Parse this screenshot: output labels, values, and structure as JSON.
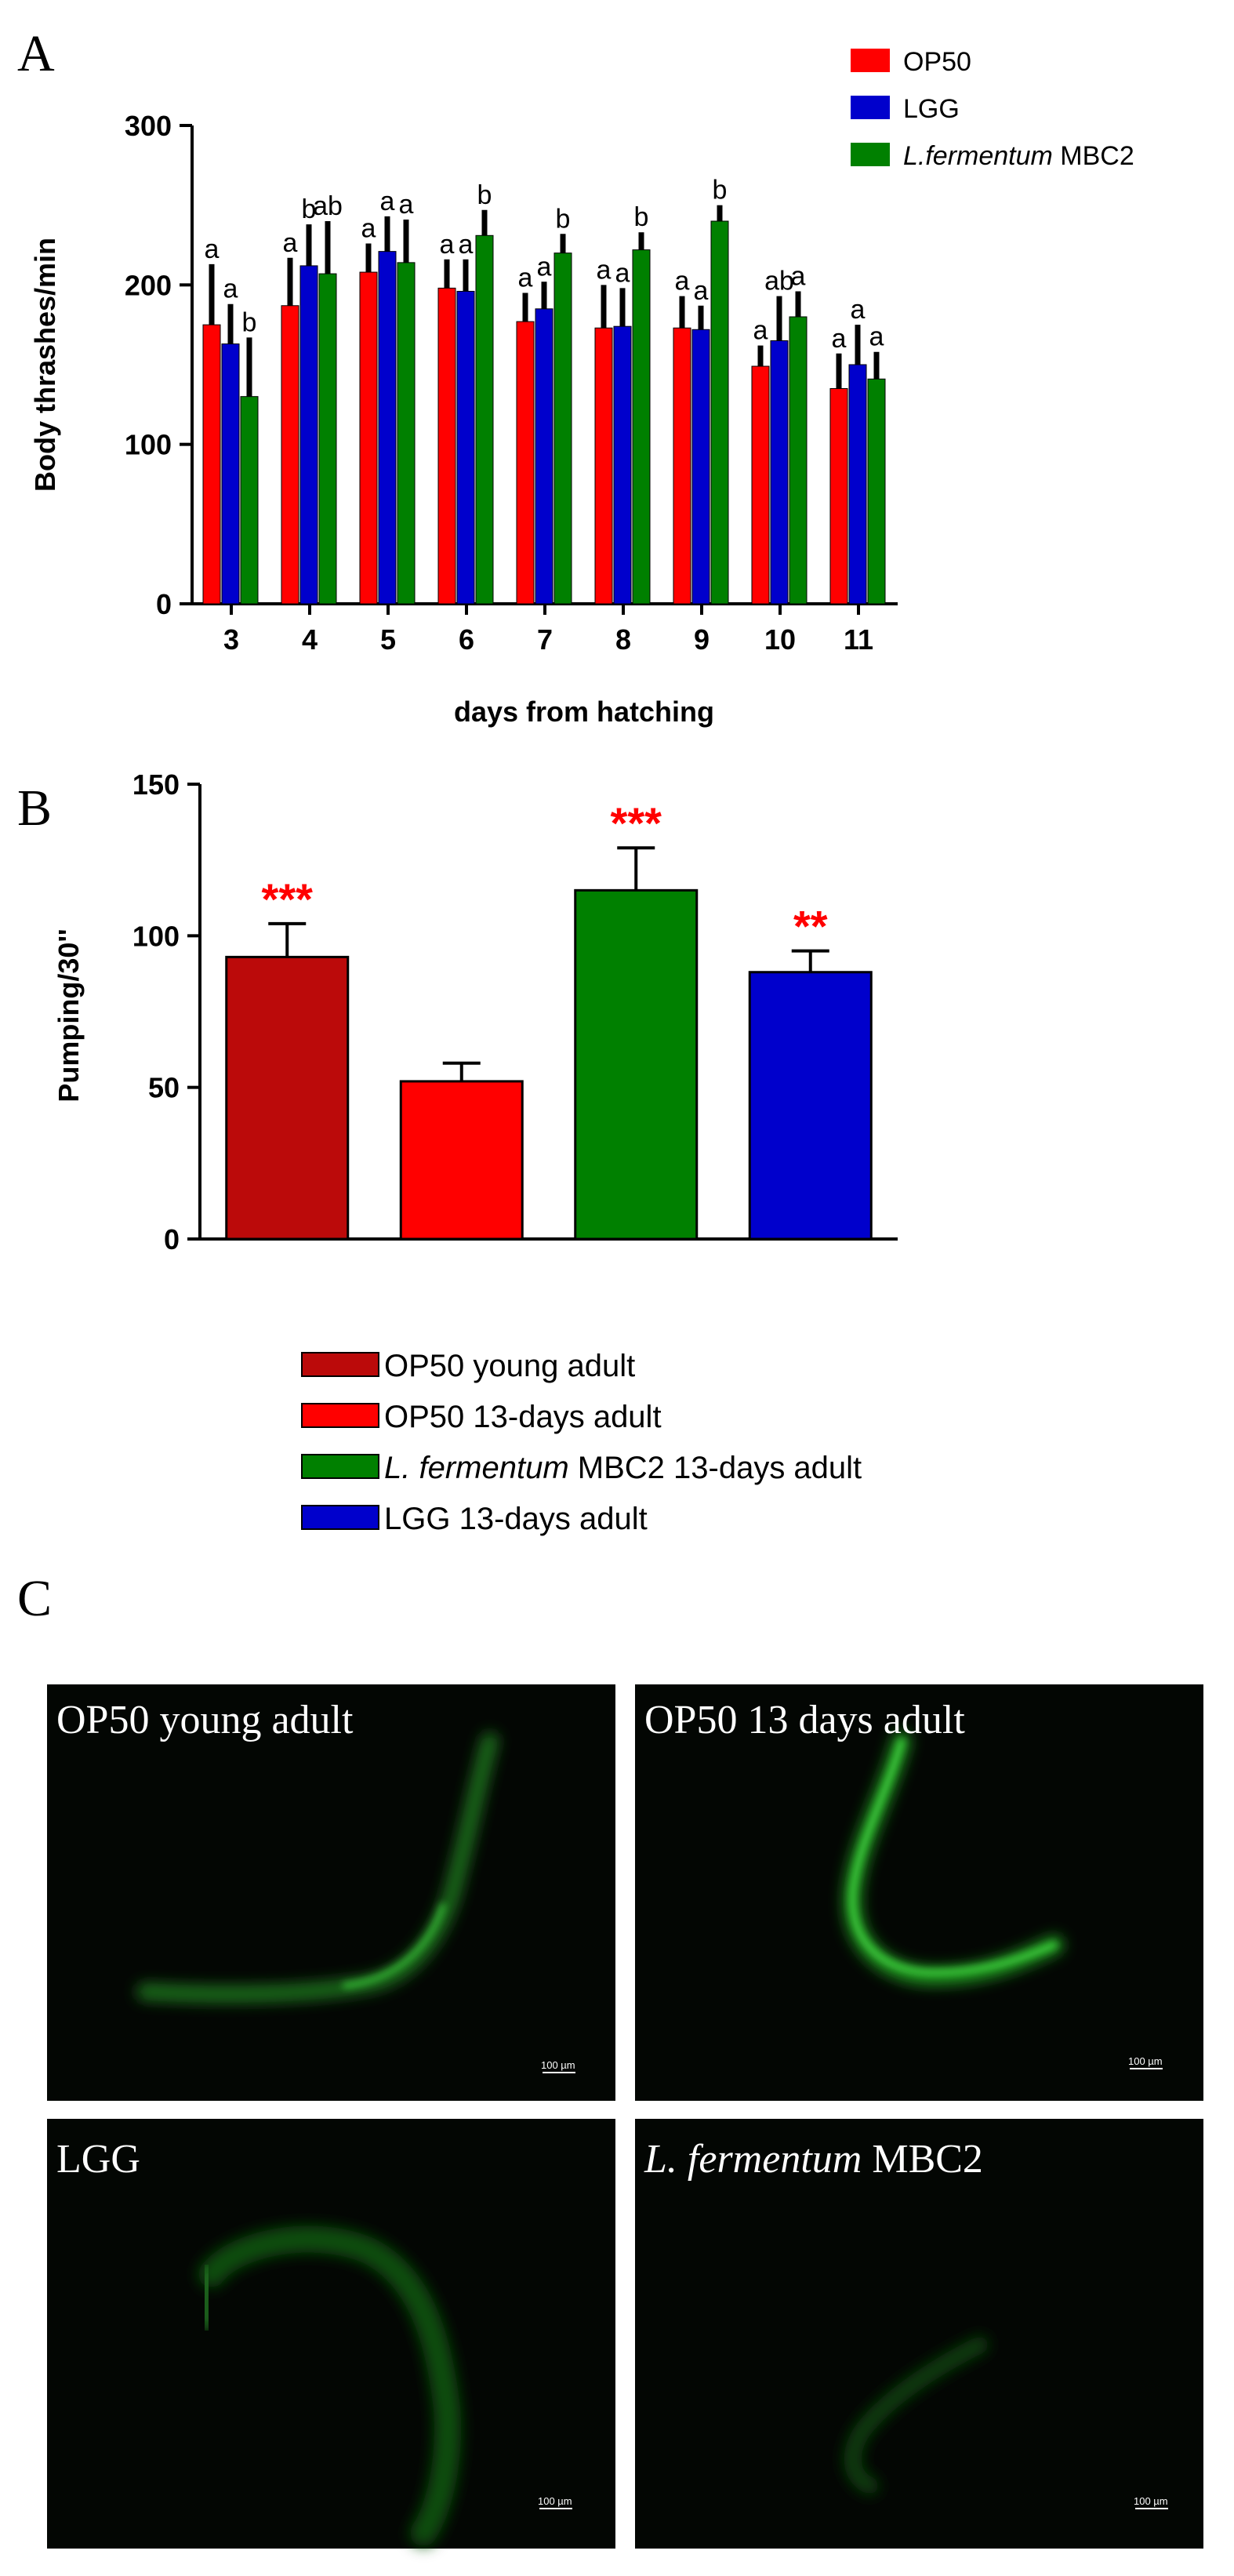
{
  "figure": {
    "panel_a_letter": "A",
    "panel_b_letter": "B",
    "panel_c_letter": "C"
  },
  "chart_data": [
    {
      "type": "bar",
      "panel": "A",
      "ylabel": "Body thrashes/min",
      "xlabel": "days from hatching",
      "ylim": [
        0,
        300
      ],
      "yticks": [
        "0",
        "100",
        "200",
        "300"
      ],
      "categories": [
        "3",
        "4",
        "5",
        "6",
        "7",
        "8",
        "9",
        "10",
        "11"
      ],
      "legend_position": "top-right",
      "series": [
        {
          "name": "OP50",
          "color": "#ff0000",
          "values": [
            175,
            187,
            208,
            198,
            177,
            173,
            173,
            149,
            135
          ],
          "errors": [
            38,
            30,
            18,
            18,
            18,
            27,
            20,
            13,
            22
          ],
          "letters": [
            "a",
            "a",
            "a",
            "a",
            "a",
            "a",
            "a",
            "a",
            "a"
          ]
        },
        {
          "name": "LGG",
          "color": "#0000cc",
          "values": [
            163,
            212,
            221,
            196,
            185,
            174,
            172,
            165,
            150
          ],
          "errors": [
            25,
            26,
            22,
            20,
            17,
            24,
            15,
            28,
            25
          ],
          "letters": [
            "a",
            "b",
            "a",
            "a",
            "a",
            "a",
            "a",
            "ab",
            "a"
          ]
        },
        {
          "name_prefix": "L.fermentum",
          "name_suffix": " MBC2",
          "color": "#008000",
          "values": [
            130,
            207,
            214,
            231,
            220,
            222,
            240,
            180,
            141
          ],
          "errors": [
            37,
            33,
            27,
            16,
            12,
            11,
            10,
            16,
            17
          ],
          "letters": [
            "b",
            "ab",
            "a",
            "b",
            "b",
            "b",
            "b",
            "a",
            "a"
          ]
        }
      ]
    },
    {
      "type": "bar",
      "panel": "B",
      "ylabel": "Pumping/30''",
      "ylim": [
        0,
        150
      ],
      "yticks": [
        "0",
        "50",
        "100",
        "150"
      ],
      "legend_position": "bottom",
      "bars": [
        {
          "label": "OP50 young adult",
          "color": "#bb0a0a",
          "value": 93,
          "error": 11,
          "stars": "***"
        },
        {
          "label": "OP50 13-days adult",
          "color": "#ff0000",
          "value": 52,
          "error": 6,
          "stars": ""
        },
        {
          "label_prefix": "L. fermentum",
          "label_suffix": " MBC2 13-days adult",
          "color": "#008000",
          "value": 115,
          "error": 14,
          "stars": "***"
        },
        {
          "label": "LGG 13-days adult",
          "color": "#0000cc",
          "value": 88,
          "error": 7,
          "stars": "**"
        }
      ],
      "star_color": "#ff0000"
    }
  ],
  "micrographs": [
    {
      "label": "OP50 young adult",
      "italic_part": "",
      "scale": "100 µm"
    },
    {
      "label": "OP50 13 days adult",
      "italic_part": "",
      "scale": "100 µm"
    },
    {
      "label": "LGG",
      "italic_part": "",
      "scale": "100 µm"
    },
    {
      "label": "MBC2",
      "italic_part": "L. fermentum ",
      "scale": "100 µm"
    }
  ]
}
